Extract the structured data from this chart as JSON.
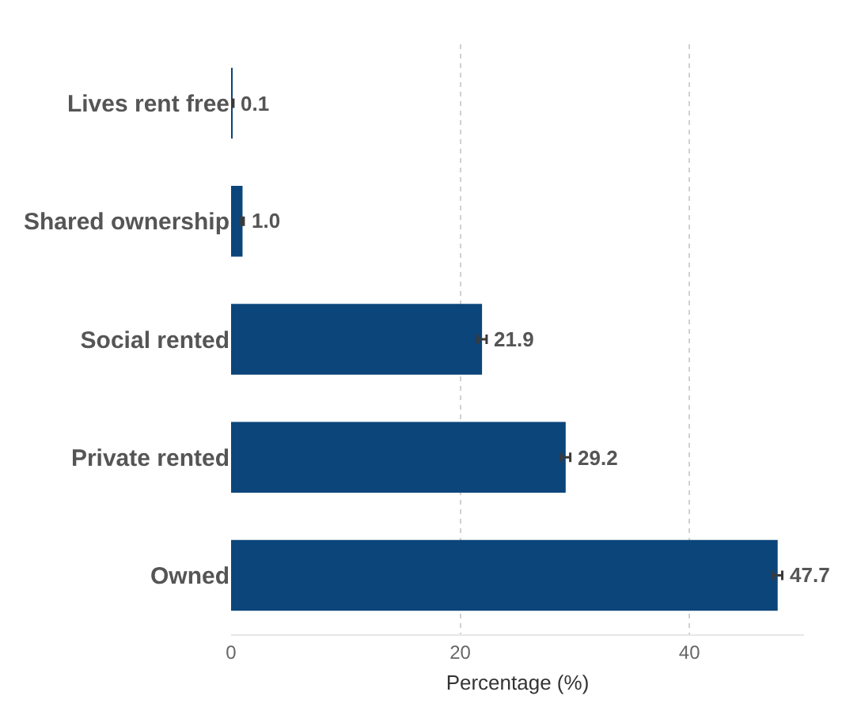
{
  "chart_data": {
    "type": "bar",
    "orientation": "horizontal",
    "xlabel": "Percentage (%)",
    "categories": [
      "Lives rent free",
      "Shared ownership",
      "Social rented",
      "Private rented",
      "Owned"
    ],
    "values": [
      0.1,
      1.0,
      21.9,
      29.2,
      47.7
    ],
    "value_labels": [
      "0.1",
      "1.0",
      "21.9",
      "29.2",
      "47.7"
    ],
    "errors": [
      0.1,
      0.1,
      0.4,
      0.4,
      0.4
    ],
    "color": "#0b457a",
    "xlim": [
      0,
      50
    ],
    "xticks": [
      0,
      20,
      40
    ],
    "grid": "x"
  }
}
